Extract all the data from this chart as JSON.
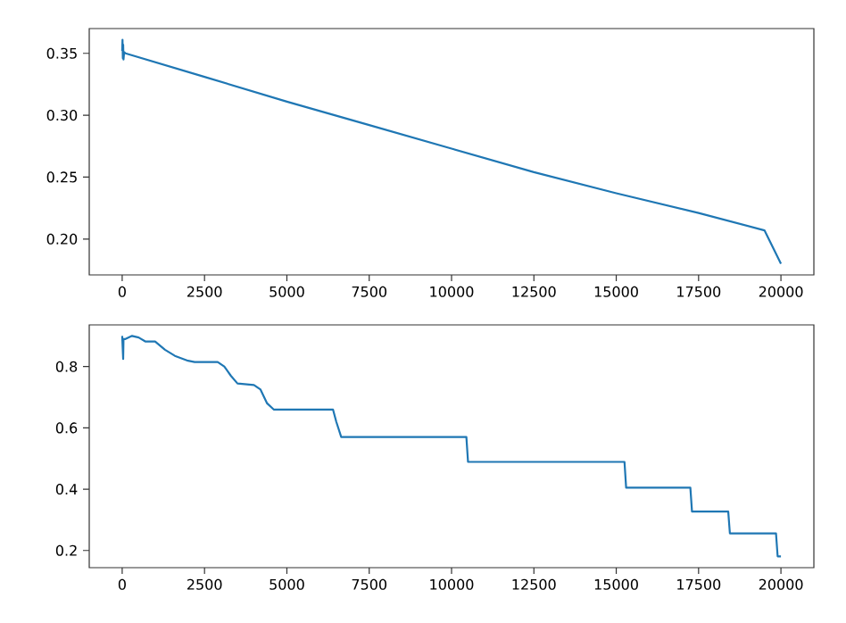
{
  "chart_data": [
    {
      "type": "line",
      "color": "#1f77b4",
      "x": [
        0,
        10,
        20,
        30,
        40,
        60,
        100,
        2500,
        5000,
        7500,
        10000,
        12500,
        15000,
        17500,
        19500,
        20000
      ],
      "values": [
        0.352,
        0.361,
        0.346,
        0.357,
        0.345,
        0.351,
        0.35,
        0.331,
        0.311,
        0.292,
        0.273,
        0.254,
        0.237,
        0.221,
        0.207,
        0.18
      ],
      "xlim": [
        -1000,
        21000
      ],
      "xticks": [
        0,
        2500,
        5000,
        7500,
        10000,
        12500,
        15000,
        17500,
        20000
      ],
      "ylim": [
        0.171,
        0.37
      ],
      "yticks": [
        {
          "value": 0.2,
          "label": "0.20"
        },
        {
          "value": 0.25,
          "label": "0.25"
        },
        {
          "value": 0.3,
          "label": "0.30"
        },
        {
          "value": 0.35,
          "label": "0.35"
        }
      ]
    },
    {
      "type": "line",
      "color": "#1f77b4",
      "x": [
        0,
        30,
        40,
        100,
        300,
        500,
        700,
        1000,
        1300,
        1600,
        2000,
        2200,
        2900,
        3100,
        3300,
        3500,
        4000,
        4200,
        4400,
        4600,
        6400,
        6500,
        6650,
        10450,
        10500,
        15250,
        15300,
        17250,
        17300,
        18400,
        18450,
        19850,
        19900,
        20000
      ],
      "values": [
        0.9,
        0.825,
        0.89,
        0.89,
        0.9,
        0.895,
        0.882,
        0.882,
        0.855,
        0.835,
        0.819,
        0.815,
        0.815,
        0.8,
        0.77,
        0.745,
        0.74,
        0.725,
        0.68,
        0.66,
        0.66,
        0.62,
        0.57,
        0.57,
        0.489,
        0.489,
        0.405,
        0.405,
        0.327,
        0.327,
        0.256,
        0.256,
        0.181,
        0.181
      ],
      "xlim": [
        -1000,
        21000
      ],
      "xticks": [
        0,
        2500,
        5000,
        7500,
        10000,
        12500,
        15000,
        17500,
        20000
      ],
      "ylim": [
        0.144,
        0.936
      ],
      "yticks": [
        0.2,
        0.4,
        0.6,
        0.8
      ]
    }
  ]
}
